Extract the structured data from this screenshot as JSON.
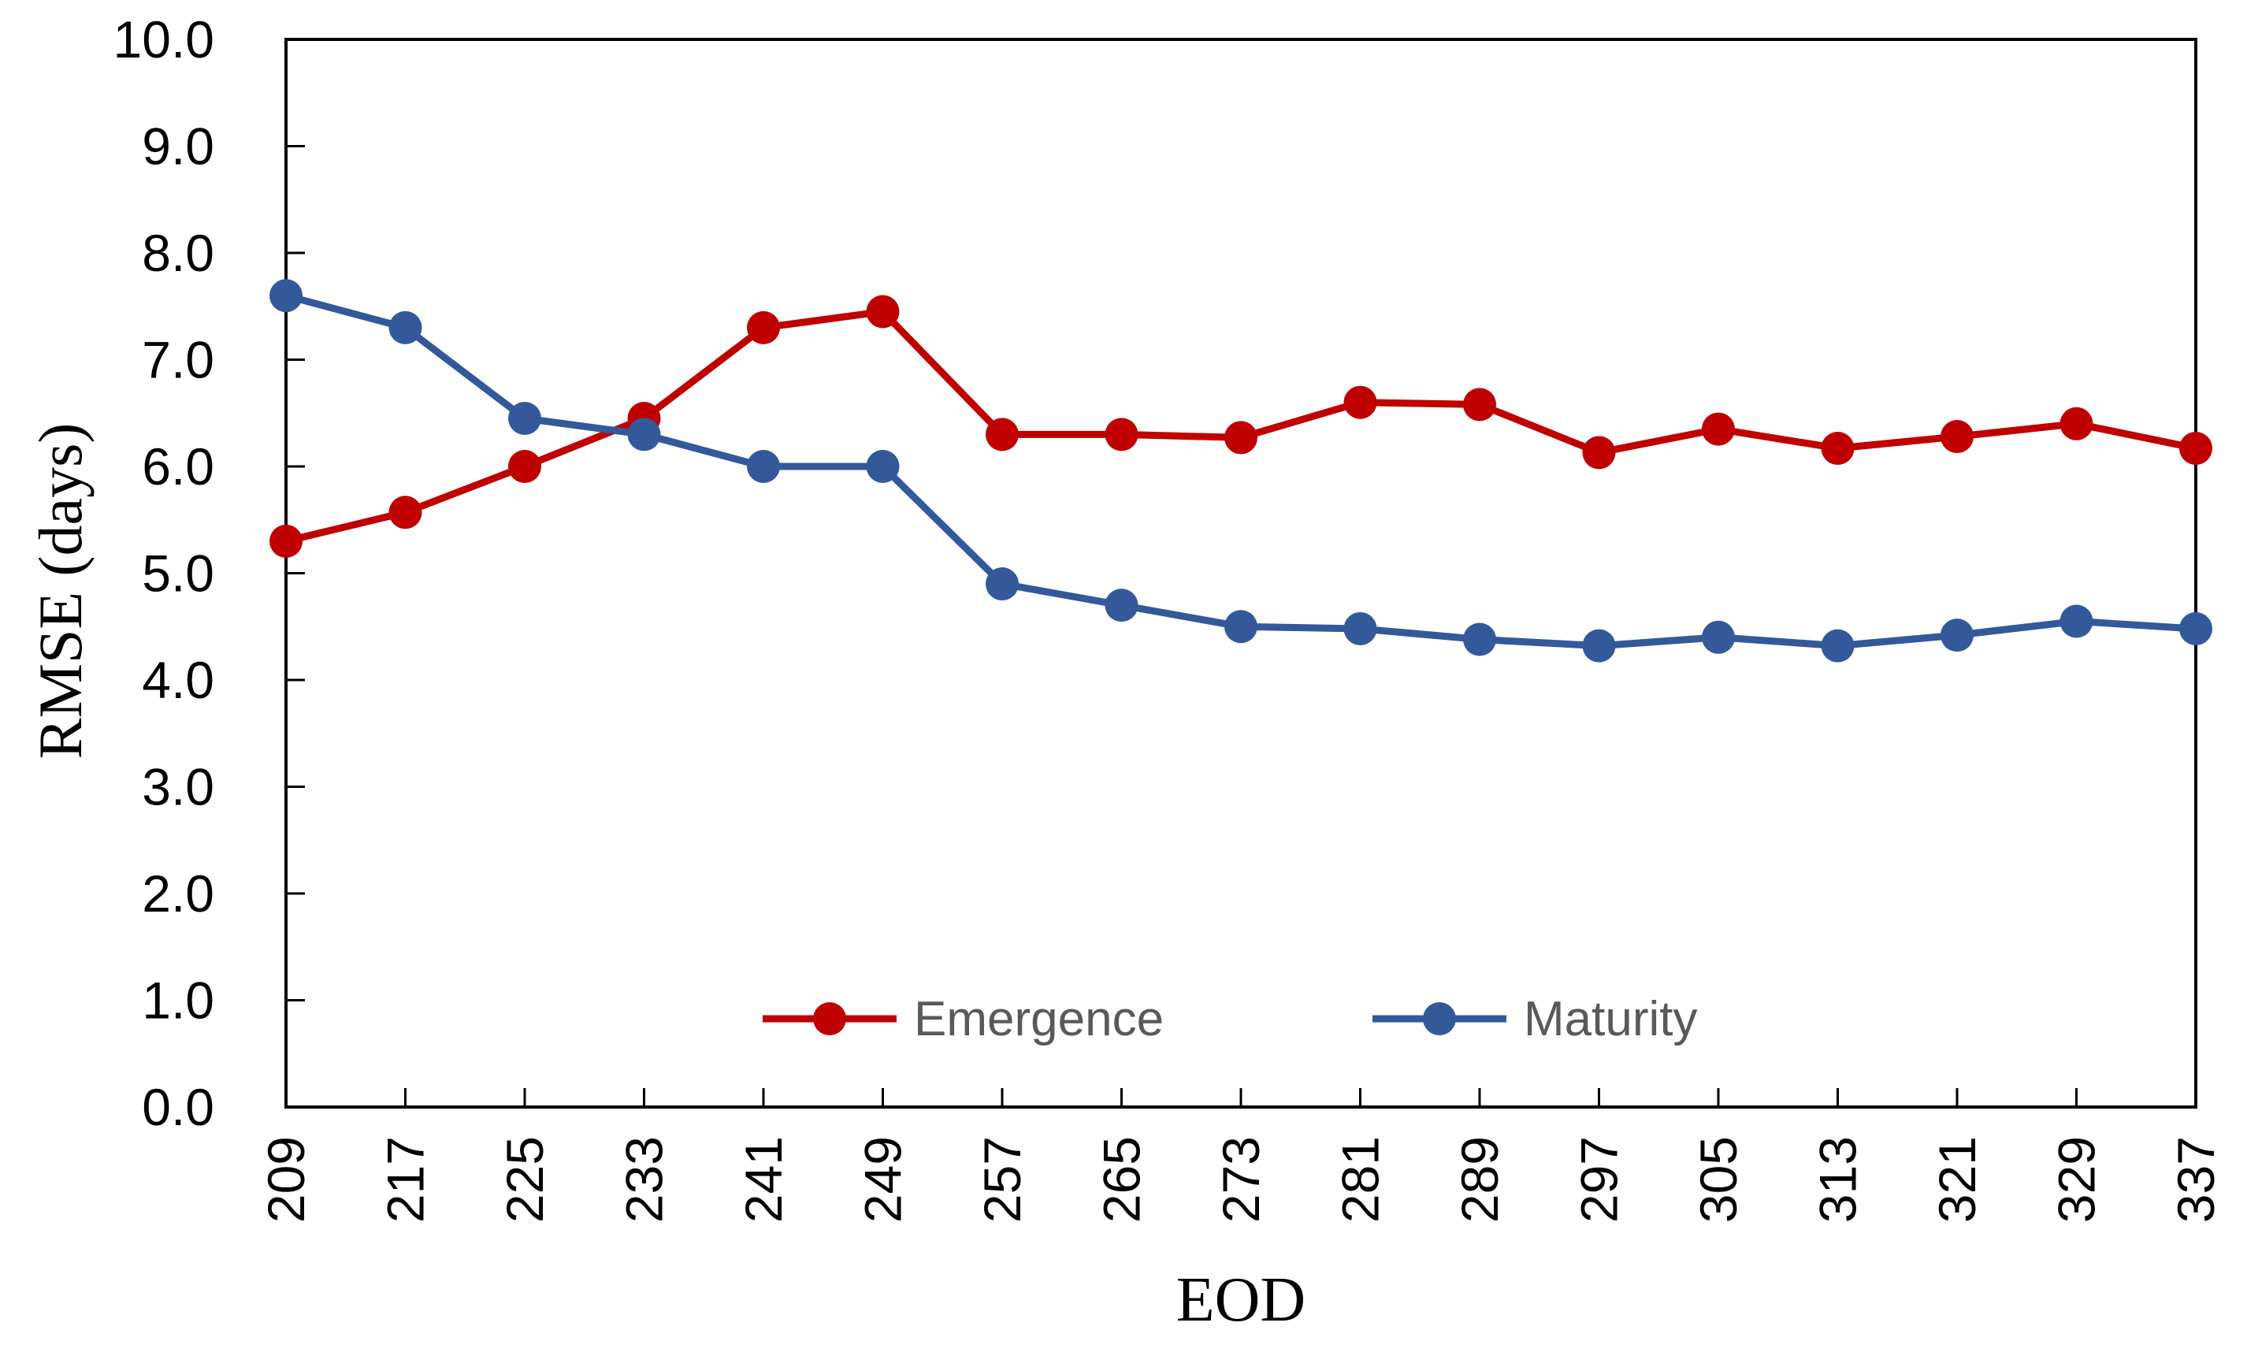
{
  "chart_data": {
    "type": "line",
    "title": "",
    "xlabel": "EOD",
    "ylabel": "RMSE (days)",
    "categories": [
      "209",
      "217",
      "225",
      "233",
      "241",
      "249",
      "257",
      "265",
      "273",
      "281",
      "289",
      "297",
      "305",
      "313",
      "321",
      "329",
      "337"
    ],
    "series": [
      {
        "name": "Emergence",
        "color": "#C00000",
        "values": [
          5.3,
          5.57,
          6.0,
          6.45,
          7.3,
          7.45,
          6.3,
          6.3,
          6.27,
          6.6,
          6.58,
          6.13,
          6.35,
          6.17,
          6.28,
          6.4,
          6.17
        ]
      },
      {
        "name": "Maturity",
        "color": "#33599B",
        "values": [
          7.6,
          7.3,
          6.45,
          6.3,
          6.0,
          6.0,
          4.9,
          4.7,
          4.5,
          4.48,
          4.38,
          4.32,
          4.4,
          4.32,
          4.42,
          4.55,
          4.48
        ]
      }
    ],
    "ylim": [
      0,
      10
    ],
    "y_tick_step": 1,
    "y_tick_decimals": 1,
    "x_tick_label_rotation": -90,
    "grid": false,
    "legend_position": "inside-bottom-center",
    "marker": "circle",
    "colors": {
      "axis": "#000000",
      "tick_labels": "#000000",
      "legend_text": "#595959",
      "background": "#FFFFFF"
    }
  }
}
